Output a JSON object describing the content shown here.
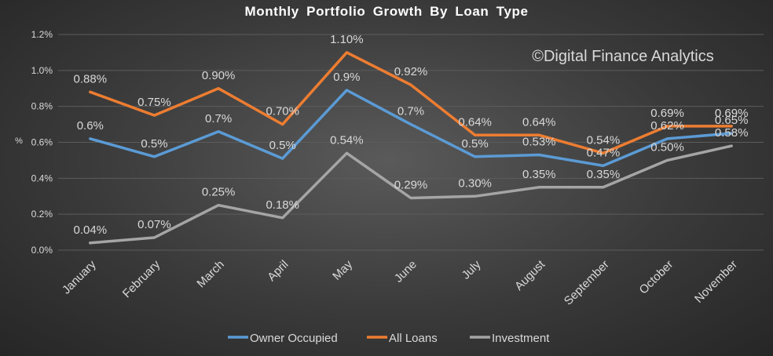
{
  "watermark": "©Digital Finance Analytics",
  "colors": {
    "owner": "#5b9bd5",
    "all": "#ed7d31",
    "investment": "#a5a5a5"
  },
  "chart_data": {
    "type": "line",
    "title": "Monthly Portfolio Growth By Loan Type",
    "xlabel": "",
    "ylabel": "%",
    "ylim": [
      0,
      1.2
    ],
    "yticks": [
      "0.0%",
      "0.2%",
      "0.4%",
      "0.6%",
      "0.8%",
      "1.0%",
      "1.2%"
    ],
    "grid": true,
    "legend_position": "bottom",
    "categories": [
      "January",
      "February",
      "March",
      "April",
      "May",
      "June",
      "July",
      "August",
      "September",
      "October",
      "November"
    ],
    "series": [
      {
        "name": "Owner Occupied",
        "color": "#5b9bd5",
        "values": [
          0.62,
          0.52,
          0.66,
          0.51,
          0.89,
          0.7,
          0.52,
          0.53,
          0.47,
          0.62,
          0.65
        ],
        "labels": [
          "0.6%",
          "0.5%",
          "0.7%",
          "0.5%",
          "0.9%",
          "0.7%",
          "0.5%",
          "0.53%",
          "0.47%",
          "0.62%",
          "0.65%"
        ]
      },
      {
        "name": "All Loans",
        "color": "#ed7d31",
        "values": [
          0.88,
          0.75,
          0.9,
          0.7,
          1.1,
          0.92,
          0.64,
          0.64,
          0.54,
          0.69,
          0.69
        ],
        "labels": [
          "0.88%",
          "0.75%",
          "0.90%",
          "0.70%",
          "1.10%",
          "0.92%",
          "0.64%",
          "0.64%",
          "0.54%",
          "0.69%",
          "0.69%"
        ]
      },
      {
        "name": "Investment",
        "color": "#a5a5a5",
        "values": [
          0.04,
          0.07,
          0.25,
          0.18,
          0.54,
          0.29,
          0.3,
          0.35,
          0.35,
          0.5,
          0.58
        ],
        "labels": [
          "0.04%",
          "0.07%",
          "0.25%",
          "0.18%",
          "0.54%",
          "0.29%",
          "0.30%",
          "0.35%",
          "0.35%",
          "0.50%",
          "0.58%"
        ]
      }
    ]
  }
}
